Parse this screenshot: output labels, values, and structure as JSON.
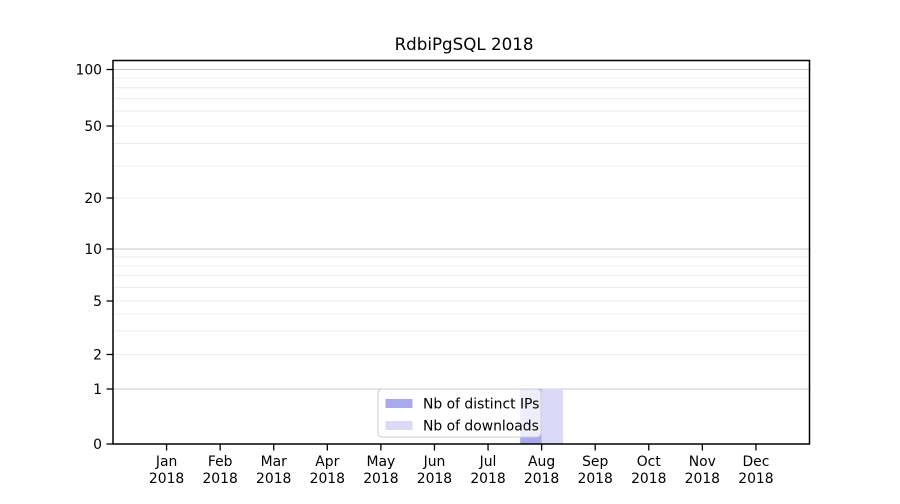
{
  "chart_data": {
    "type": "bar",
    "title": "RdbiPgSQL 2018",
    "x_tick_labels": [
      {
        "month": "Jan",
        "year": "2018"
      },
      {
        "month": "Feb",
        "year": "2018"
      },
      {
        "month": "Mar",
        "year": "2018"
      },
      {
        "month": "Apr",
        "year": "2018"
      },
      {
        "month": "May",
        "year": "2018"
      },
      {
        "month": "Jun",
        "year": "2018"
      },
      {
        "month": "Jul",
        "year": "2018"
      },
      {
        "month": "Aug",
        "year": "2018"
      },
      {
        "month": "Sep",
        "year": "2018"
      },
      {
        "month": "Oct",
        "year": "2018"
      },
      {
        "month": "Nov",
        "year": "2018"
      },
      {
        "month": "Dec",
        "year": "2018"
      }
    ],
    "series": [
      {
        "name": "Nb of distinct IPs",
        "color": "#a9a9ec",
        "values": [
          0,
          0,
          0,
          0,
          0,
          0,
          0,
          1,
          0,
          0,
          0,
          0
        ]
      },
      {
        "name": "Nb of downloads",
        "color": "#dadaf7",
        "values": [
          0,
          0,
          0,
          0,
          0,
          0,
          0,
          1,
          0,
          0,
          0,
          0
        ]
      }
    ],
    "y_major_ticks": [
      0,
      1,
      2,
      5,
      10,
      20,
      50,
      100
    ],
    "y_minor_gridlines": [
      3,
      4,
      6,
      7,
      8,
      9,
      30,
      40,
      60,
      70,
      80,
      90
    ],
    "decade_gridlines": [
      1,
      10,
      100
    ],
    "ylim": [
      0,
      110
    ],
    "scale": "log-like",
    "grid": true,
    "legend": {
      "position": "lower center"
    },
    "colors": {
      "axis": "#000000",
      "major_grid": "#c8c8c8",
      "minor_grid": "#ececec",
      "legend_border": "#cccccc",
      "legend_bg": "rgba(255,255,255,0.8)"
    }
  }
}
